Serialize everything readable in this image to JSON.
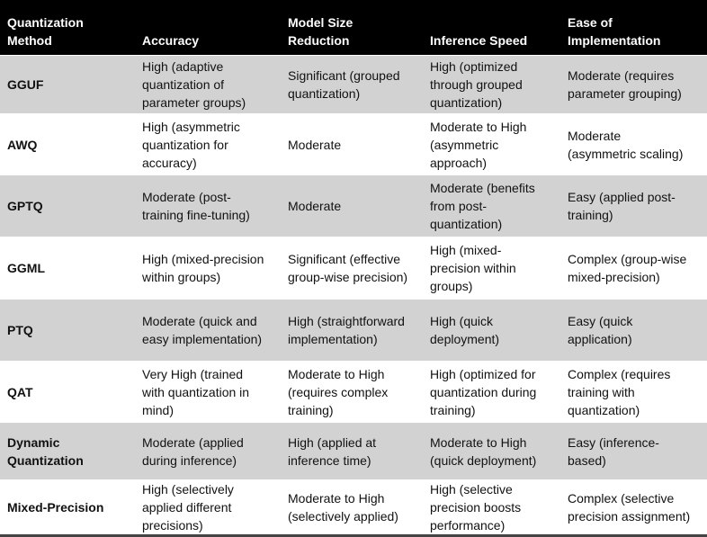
{
  "headers": [
    "Quantization\nMethod",
    "Accuracy",
    "Model Size\nReduction",
    "Inference Speed",
    "Ease of\nImplementation"
  ],
  "rows": [
    {
      "method": "GGUF",
      "accuracy": "High (adaptive\nquantization of\nparameter groups)",
      "size": "Significant (grouped\nquantization)",
      "speed": "High (optimized\nthrough grouped\nquantization)",
      "ease": "Moderate (requires\nparameter grouping)"
    },
    {
      "method": "AWQ",
      "accuracy": "High (asymmetric\nquantization for\naccuracy)",
      "size": "Moderate",
      "speed": "Moderate to High\n(asymmetric\napproach)",
      "ease": "Moderate\n(asymmetric scaling)"
    },
    {
      "method": "GPTQ",
      "accuracy": "Moderate (post-\ntraining fine-tuning)",
      "size": "Moderate",
      "speed": "Moderate (benefits\nfrom post-\nquantization)",
      "ease": "Easy (applied post-\ntraining)"
    },
    {
      "method": "GGML",
      "accuracy": "High (mixed-precision\nwithin groups)",
      "size": "Significant (effective\ngroup-wise precision)",
      "speed": "High (mixed-\nprecision within\ngroups)",
      "ease": "Complex (group-wise\nmixed-precision)"
    },
    {
      "method": "PTQ",
      "accuracy": "Moderate (quick and\neasy implementation)",
      "size": "High (straightforward\nimplementation)",
      "speed": "High (quick\ndeployment)",
      "ease": "Easy (quick\napplication)"
    },
    {
      "method": "QAT",
      "accuracy": "Very High (trained\nwith quantization in\nmind)",
      "size": "Moderate to High\n(requires complex\ntraining)",
      "speed": "High (optimized for\nquantization during\ntraining)",
      "ease": "Complex (requires\ntraining with\nquantization)"
    },
    {
      "method": "Dynamic\nQuantization",
      "accuracy": "Moderate (applied\nduring inference)",
      "size": "High (applied at\ninference time)",
      "speed": "Moderate to High\n(quick deployment)",
      "ease": "Easy (inference-\nbased)"
    },
    {
      "method": "Mixed-Precision",
      "accuracy": "High (selectively\napplied different\nprecisions)",
      "size": "Moderate to High\n(selectively applied)",
      "speed": "High (selective\nprecision boosts\nperformance)",
      "ease": "Complex (selective\nprecision assignment)"
    }
  ],
  "colors": {
    "header_bg": "#000000",
    "stripe": "#d2d2d2"
  }
}
